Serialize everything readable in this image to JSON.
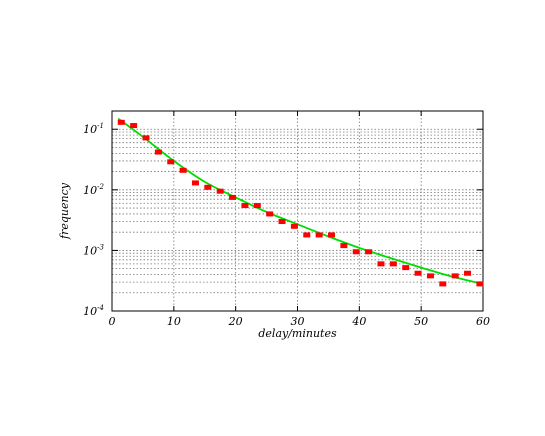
{
  "chart_data": {
    "type": "scatter",
    "title": "",
    "xlabel": "delay/minutes",
    "ylabel": "frequency",
    "xlim": [
      0,
      60
    ],
    "ylim": [
      0.0001,
      0.2
    ],
    "y_scale": "log",
    "x_ticks": [
      0,
      10,
      20,
      30,
      40,
      50,
      60
    ],
    "x_tick_labels": [
      "0",
      "10",
      "20",
      "30",
      "40",
      "50",
      "60"
    ],
    "y_ticks": [
      0.1,
      0.01,
      0.001,
      0.0001
    ],
    "y_tick_labels": [
      {
        "base": "10",
        "exp": "-1"
      },
      {
        "base": "10",
        "exp": "-2"
      },
      {
        "base": "10",
        "exp": "-3"
      },
      {
        "base": "10",
        "exp": "-4"
      }
    ],
    "grid": "dotted",
    "colors": {
      "points": "#ff0000",
      "fit": "#00dd00",
      "grid": "#777777"
    },
    "series": [
      {
        "kind": "points",
        "x": [
          1.5,
          3.5,
          5.5,
          7.5,
          9.5,
          11.5,
          13.5,
          15.5,
          17.5,
          19.5,
          21.5,
          23.5,
          25.5,
          27.5,
          29.5,
          31.5,
          33.5,
          35.5,
          37.5,
          39.5,
          41.5,
          43.5,
          45.5,
          47.5,
          49.5,
          51.5,
          53.5,
          55.5,
          57.5,
          59.5
        ],
        "y": [
          0.13,
          0.115,
          0.072,
          0.042,
          0.029,
          0.021,
          0.013,
          0.011,
          0.0095,
          0.0075,
          0.0055,
          0.0055,
          0.004,
          0.003,
          0.0025,
          0.0018,
          0.0018,
          0.0018,
          0.0012,
          0.00095,
          0.00095,
          0.0006,
          0.0006,
          0.00052,
          0.00042,
          0.00038,
          0.00028,
          0.00038,
          0.00042,
          0.00028
        ]
      },
      {
        "kind": "fit",
        "x": [
          1,
          5,
          10,
          15,
          20,
          25,
          30,
          35,
          40,
          45,
          50,
          55,
          60
        ],
        "y": [
          0.15,
          0.075,
          0.03,
          0.0135,
          0.0075,
          0.0043,
          0.0027,
          0.0017,
          0.0011,
          0.00075,
          0.00052,
          0.00037,
          0.00028
        ]
      }
    ]
  }
}
